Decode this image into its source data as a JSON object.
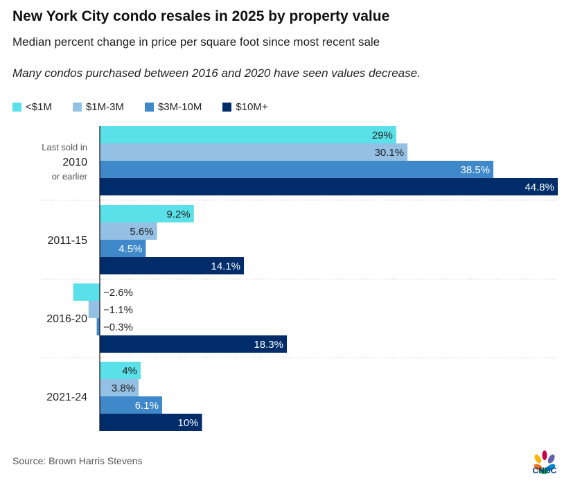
{
  "title": "New York City condo resales in 2025 by property value",
  "subtitle": "Median percent change in price per square foot since most recent sale",
  "note": "Many condos purchased between 2016 and 2020 have seen values decrease.",
  "source": "Source: Brown Harris Stevens",
  "logo": "CNBC",
  "chart_data": {
    "type": "bar",
    "orientation": "horizontal",
    "categories": [
      {
        "lines": [
          "Last sold in",
          "2010",
          "or earlier"
        ]
      },
      {
        "lines": [
          "2011-15"
        ]
      },
      {
        "lines": [
          "2016-20"
        ]
      },
      {
        "lines": [
          "2021-24"
        ]
      }
    ],
    "series": [
      {
        "name": "<$1M",
        "color": "#5ae0e8",
        "values": [
          29,
          9.2,
          -2.6,
          4
        ],
        "labels": [
          "29%",
          "9.2%",
          "−2.6%",
          "4%"
        ]
      },
      {
        "name": "$1M-3M",
        "color": "#93c0e3",
        "values": [
          30.1,
          5.6,
          -1.1,
          3.8
        ],
        "labels": [
          "30.1%",
          "5.6%",
          "−1.1%",
          "3.8%"
        ]
      },
      {
        "name": "$3M-10M",
        "color": "#3f88c9",
        "values": [
          38.5,
          4.5,
          -0.3,
          6.1
        ],
        "labels": [
          "38.5%",
          "4.5%",
          "−0.3%",
          "6.1%"
        ]
      },
      {
        "name": "$10M+",
        "color": "#002d6a",
        "values": [
          44.8,
          14.1,
          18.3,
          10
        ],
        "labels": [
          "44.8%",
          "14.1%",
          "18.3%",
          "10%"
        ]
      }
    ],
    "xlim": [
      -2.7,
      44.8
    ],
    "grid": false,
    "legend": "top-left"
  }
}
